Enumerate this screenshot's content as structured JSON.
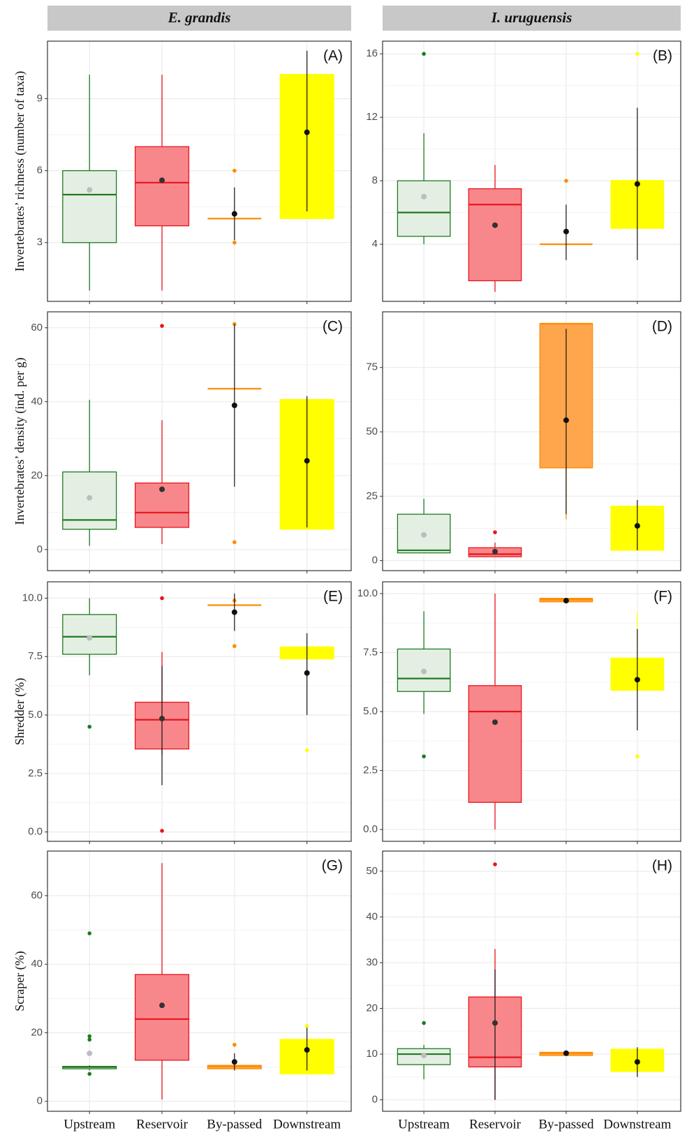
{
  "strips": [
    "E. grandis",
    "I. uruguensis"
  ],
  "categories": [
    "Upstream",
    "Reservoir",
    "By-passed",
    "Downstream"
  ],
  "colors": [
    {
      "line": "#1f7a1f",
      "fill": "#e4efe4",
      "mean": "#bdbdbd"
    },
    {
      "line": "#e8141c",
      "fill": "#f8878b",
      "mean": "#333333"
    },
    {
      "line": "#ff8c00",
      "fill": "#ffa64d",
      "mean": "#111111"
    },
    {
      "line": "#ffff00",
      "fill": "#ffff00",
      "mean": "#111111"
    }
  ],
  "chart_data": [
    {
      "type": "box",
      "label": "(A)",
      "ylabel": "Invertebrates’ richness (number of taxa)",
      "ylim": [
        0.55,
        11.4
      ],
      "yticks": [
        3,
        6,
        9
      ],
      "boxes": [
        {
          "low": 1,
          "q1": 3,
          "median": 5,
          "q3": 6,
          "high": 10,
          "outliers": [],
          "mean": 5.2
        },
        {
          "low": 1,
          "q1": 3.7,
          "median": 5.5,
          "q3": 7,
          "high": 10,
          "outliers": [],
          "mean": 5.6
        },
        {
          "low": 4,
          "q1": 4,
          "median": 4,
          "q3": 4,
          "high": 4,
          "outliers": [
            3,
            6
          ],
          "mean": 4.2,
          "err": [
            3.1,
            5.3
          ]
        },
        {
          "low": 4,
          "q1": 4,
          "median": 10,
          "q3": 10,
          "high": 10,
          "outliers": [],
          "mean": 7.6,
          "err": [
            4.3,
            11
          ]
        }
      ]
    },
    {
      "type": "box",
      "label": "(B)",
      "ylim": [
        0.4,
        16.8
      ],
      "yticks": [
        4,
        8,
        12,
        16
      ],
      "boxes": [
        {
          "low": 4,
          "q1": 4.5,
          "median": 6,
          "q3": 8,
          "high": 11,
          "outliers": [
            16
          ],
          "mean": 7
        },
        {
          "low": 1,
          "q1": 1.7,
          "median": 6.5,
          "q3": 7.5,
          "high": 9,
          "outliers": [],
          "mean": 5.2
        },
        {
          "low": 4,
          "q1": 4,
          "median": 4,
          "q3": 4,
          "high": 4,
          "outliers": [
            8
          ],
          "mean": 4.8,
          "err": [
            3,
            6.5
          ]
        },
        {
          "low": 5,
          "q1": 5,
          "median": 8,
          "q3": 8,
          "high": 8,
          "outliers": [
            16
          ],
          "mean": 7.8,
          "err": [
            3,
            12.6
          ]
        }
      ]
    },
    {
      "type": "box",
      "label": "(C)",
      "ylabel": "Invertebrates’ density (ind. per g)",
      "ylim": [
        -5.7,
        64.3
      ],
      "yticks": [
        0,
        20,
        40,
        60
      ],
      "boxes": [
        {
          "low": 1,
          "q1": 5.5,
          "median": 8,
          "q3": 21,
          "high": 40.5,
          "outliers": [],
          "mean": 14
        },
        {
          "low": 1.5,
          "q1": 6,
          "median": 10,
          "q3": 18,
          "high": 35,
          "outliers": [
            60.5
          ],
          "mean": 16.3
        },
        {
          "low": 43.5,
          "q1": 43.5,
          "median": 43.5,
          "q3": 43.5,
          "high": 43.5,
          "outliers": [
            61,
            2
          ],
          "mean": 39,
          "err": [
            17,
            61
          ]
        },
        {
          "low": 5.5,
          "q1": 5.5,
          "median": 40.5,
          "q3": 40.5,
          "high": 40.5,
          "outliers": [],
          "mean": 24,
          "err": [
            6,
            41.5
          ]
        }
      ]
    },
    {
      "type": "box",
      "label": "(D)",
      "ylim": [
        -3.9,
        96.6
      ],
      "yticks": [
        0,
        25,
        50,
        75
      ],
      "boxes": [
        {
          "low": 3,
          "q1": 3,
          "median": 4,
          "q3": 18,
          "high": 24,
          "outliers": [],
          "mean": 10
        },
        {
          "low": 1.5,
          "q1": 1.5,
          "median": 2.5,
          "q3": 5,
          "high": 7,
          "outliers": [
            11
          ],
          "mean": 3.5
        },
        {
          "low": 16,
          "q1": 36,
          "median": 92,
          "q3": 92,
          "high": 92,
          "outliers": [],
          "mean": 54.5,
          "err": [
            18,
            90
          ]
        },
        {
          "low": 4,
          "q1": 4,
          "median": 21,
          "q3": 21,
          "high": 21,
          "outliers": [],
          "mean": 13.5,
          "err": [
            4,
            23.5
          ]
        }
      ]
    },
    {
      "type": "box",
      "label": "(E)",
      "ylabel": "Shredder (%)",
      "ylim": [
        -0.4,
        10.7
      ],
      "yticks": [
        {
          "value": 0,
          "label": "0.0"
        },
        2.5,
        {
          "value": 5,
          "label": "5.0"
        },
        7.5,
        {
          "value": 10,
          "label": "10.0"
        }
      ],
      "boxes": [
        {
          "low": 6.7,
          "q1": 7.6,
          "median": 8.35,
          "q3": 9.3,
          "high": 10,
          "outliers": [
            4.5
          ],
          "mean": 8.3
        },
        {
          "low": 3.3,
          "q1": 3.55,
          "median": 4.8,
          "q3": 5.55,
          "high": 7.7,
          "outliers": [
            10,
            0.05
          ],
          "mean": 4.85,
          "err": [
            2,
            7.1
          ]
        },
        {
          "low": 9.7,
          "q1": 9.7,
          "median": 9.7,
          "q3": 9.7,
          "high": 9.7,
          "outliers": [
            9.9,
            7.95
          ],
          "mean": 9.4,
          "err": [
            8.6,
            10.2
          ]
        },
        {
          "low": 7.4,
          "q1": 7.4,
          "median": 7.9,
          "q3": 7.9,
          "high": 7.9,
          "outliers": [
            3.5
          ],
          "mean": 6.8,
          "err": [
            5,
            8.5
          ]
        }
      ]
    },
    {
      "type": "box",
      "label": "(F)",
      "ylim": [
        -0.5,
        10.5
      ],
      "yticks": [
        {
          "value": 0,
          "label": "0.0"
        },
        2.5,
        {
          "value": 5,
          "label": "5.0"
        },
        7.5,
        {
          "value": 10,
          "label": "10.0"
        }
      ],
      "boxes": [
        {
          "low": 4.9,
          "q1": 5.85,
          "median": 6.4,
          "q3": 7.65,
          "high": 9.25,
          "outliers": [
            3.1
          ],
          "mean": 6.7
        },
        {
          "low": 0,
          "q1": 1.15,
          "median": 5,
          "q3": 6.1,
          "high": 10,
          "outliers": [],
          "mean": 4.55
        },
        {
          "low": 9.65,
          "q1": 9.65,
          "median": 9.75,
          "q3": 9.8,
          "high": 9.8,
          "outliers": [],
          "mean": 9.7
        },
        {
          "low": 5.9,
          "q1": 5.9,
          "median": 7.25,
          "q3": 7.25,
          "high": 9.2,
          "outliers": [
            3.1
          ],
          "mean": 6.35,
          "err": [
            4.2,
            8.5
          ]
        }
      ]
    },
    {
      "type": "box",
      "label": "(G)",
      "ylabel": "Scraper (%)",
      "ylim": [
        -2.9,
        73
      ],
      "yticks": [
        0,
        20,
        40,
        60
      ],
      "boxes": [
        {
          "low": 9,
          "q1": 9.5,
          "median": 10,
          "q3": 10.2,
          "high": 10.5,
          "outliers": [
            49,
            19,
            18,
            8
          ],
          "mean": 14
        },
        {
          "low": 0.5,
          "q1": 12,
          "median": 24,
          "q3": 37,
          "high": 69.5,
          "outliers": [],
          "mean": 28
        },
        {
          "low": 9.5,
          "q1": 9.5,
          "median": 10.2,
          "q3": 10.5,
          "high": 10.5,
          "outliers": [
            16.5
          ],
          "mean": 11.5,
          "err": [
            9,
            14
          ]
        },
        {
          "low": 8,
          "q1": 8,
          "median": 18,
          "q3": 18,
          "high": 18,
          "outliers": [
            22
          ],
          "mean": 15,
          "err": [
            9,
            21.5
          ]
        }
      ]
    },
    {
      "type": "box",
      "label": "(H)",
      "ylim": [
        -2.5,
        54.4
      ],
      "yticks": [
        0,
        10,
        20,
        30,
        40,
        50
      ],
      "boxes": [
        {
          "low": 4.5,
          "q1": 7.7,
          "median": 10,
          "q3": 11.2,
          "high": 12,
          "outliers": [
            16.8
          ],
          "mean": 9.7
        },
        {
          "low": 0,
          "q1": 7.2,
          "median": 9.3,
          "q3": 22.5,
          "high": 33,
          "outliers": [
            51.5
          ],
          "mean": 16.8,
          "err": [
            0,
            28.5
          ]
        },
        {
          "low": 9.7,
          "q1": 9.7,
          "median": 10.2,
          "q3": 10.4,
          "high": 10.4,
          "outliers": [],
          "mean": 10.2
        },
        {
          "low": 6.2,
          "q1": 6.2,
          "median": 11,
          "q3": 11,
          "high": 11,
          "outliers": [],
          "mean": 8.3,
          "err": [
            5,
            11.5
          ]
        }
      ]
    }
  ]
}
